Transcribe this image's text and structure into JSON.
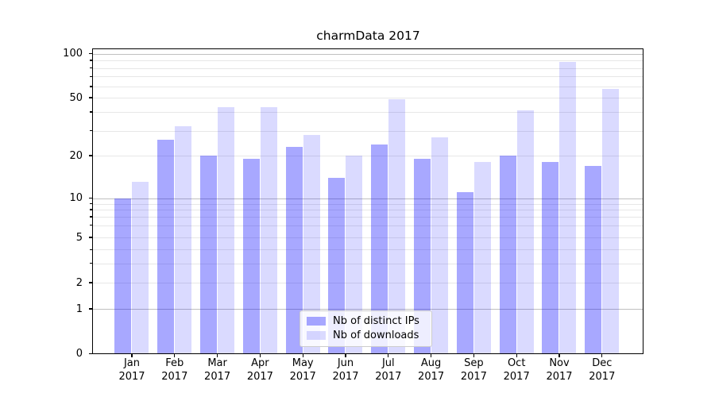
{
  "chart_data": {
    "type": "bar",
    "title": "charmData 2017",
    "categories": [
      "Jan",
      "Feb",
      "Mar",
      "Apr",
      "May",
      "Jun",
      "Jul",
      "Aug",
      "Sep",
      "Oct",
      "Nov",
      "Dec"
    ],
    "category_year_line": "2017",
    "series": [
      {
        "name": "Nb of distinct IPs",
        "color": "rgba(0,0,255,0.34)",
        "values": [
          10,
          26,
          20,
          19,
          23,
          14,
          24,
          19,
          11,
          20,
          18,
          17
        ]
      },
      {
        "name": "Nb of downloads",
        "color": "rgba(0,0,255,0.145)",
        "values": [
          13,
          32,
          43,
          43,
          28,
          20,
          49,
          27,
          18,
          41,
          88,
          58
        ]
      }
    ],
    "yscale": "symlog",
    "ylim": [
      0,
      100
    ],
    "y_tick_labels": [
      0,
      1,
      2,
      5,
      10,
      20,
      50,
      100
    ],
    "y_major_grid": [
      1,
      10,
      100
    ],
    "y_minor_grid": [
      2,
      3,
      4,
      5,
      6,
      7,
      8,
      9,
      20,
      30,
      40,
      50,
      60,
      70,
      80,
      90
    ],
    "grid": true,
    "legend_position": "lower center"
  }
}
